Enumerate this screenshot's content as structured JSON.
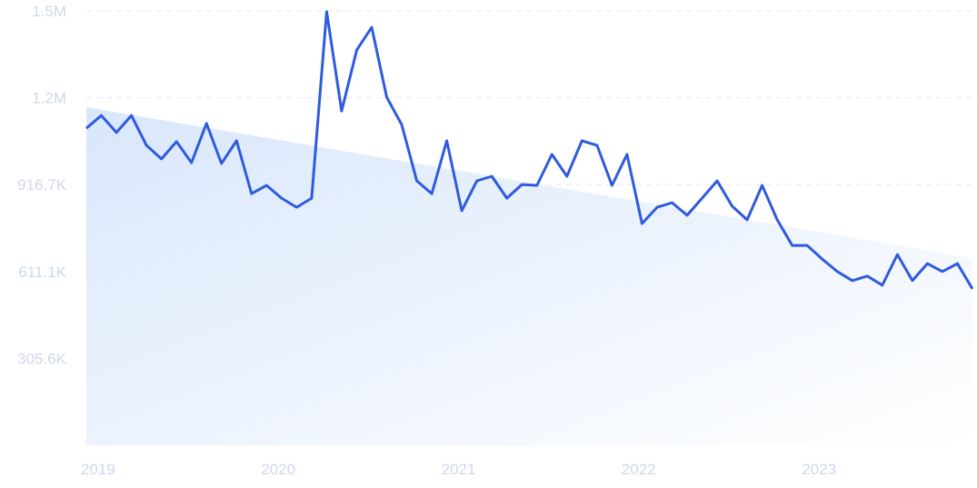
{
  "chart_data": {
    "type": "line",
    "categories": [
      "2019",
      null,
      null,
      null,
      null,
      null,
      null,
      null,
      null,
      null,
      null,
      null,
      "2020",
      null,
      null,
      null,
      null,
      null,
      null,
      null,
      null,
      null,
      null,
      null,
      "2021",
      null,
      null,
      null,
      null,
      null,
      null,
      null,
      null,
      null,
      null,
      null,
      "2022",
      null,
      null,
      null,
      null,
      null,
      null,
      null,
      null,
      null,
      null,
      null,
      "2023",
      null,
      null,
      null,
      null,
      null,
      null,
      null,
      null,
      null,
      null,
      null
    ],
    "values": [
      1115000,
      1160000,
      1100000,
      1160000,
      1055000,
      1007000,
      1068000,
      994000,
      1132000,
      991000,
      1071000,
      885000,
      914000,
      869000,
      837000,
      869000,
      1525000,
      1176000,
      1390000,
      1470000,
      1224000,
      1128000,
      930000,
      885000,
      1071000,
      825000,
      930000,
      946000,
      869000,
      917000,
      914000,
      1023000,
      946000,
      1071000,
      1055000,
      914000,
      1023000,
      780000,
      837000,
      853000,
      809000,
      869000,
      930000,
      841000,
      793000,
      914000,
      793000,
      703000,
      703000,
      655000,
      611000,
      579000,
      595000,
      563000,
      671000,
      579000,
      639000,
      611000,
      639000,
      550000
    ],
    "color": "#2f5bde",
    "trend": [
      1189000,
      658000
    ],
    "trend_color": "#d9e7fb",
    "ylim": [
      0,
      1527778
    ],
    "yticks": [
      {
        "value": 305556,
        "label": "305.6K"
      },
      {
        "value": 611111,
        "label": "611.1K"
      },
      {
        "value": 916667,
        "label": "916.7K"
      },
      {
        "value": 1222222,
        "label": "1.2M"
      },
      {
        "value": 1527778,
        "label": "1.5M"
      }
    ],
    "grid": true
  }
}
